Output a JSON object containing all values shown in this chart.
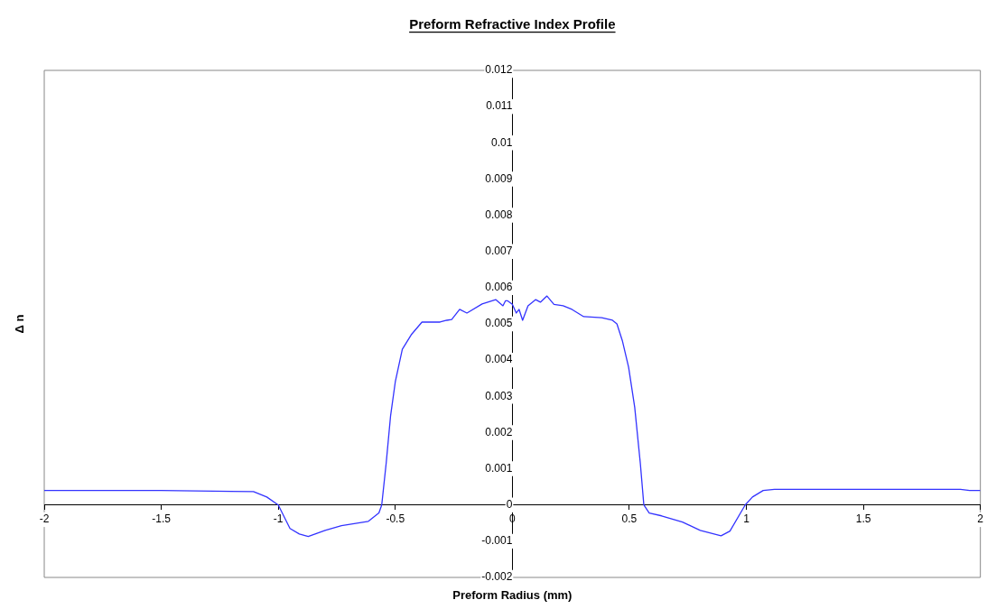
{
  "chart_data": {
    "type": "line",
    "title": "Preform Refractive Index Profile",
    "xlabel": "Preform Radius (mm)",
    "ylabel": "Δ n",
    "xlim": [
      -2,
      2
    ],
    "xticks": [
      -2,
      -1.5,
      -1,
      -0.5,
      0,
      0.5,
      1,
      1.5,
      2
    ],
    "ylim": [
      -0.002,
      0.012
    ],
    "yticks": [
      -0.002,
      -0.001,
      0,
      0.001,
      0.002,
      0.003,
      0.004,
      0.005,
      0.006,
      0.007,
      0.008,
      0.009,
      0.01,
      0.011,
      0.012
    ],
    "grid": false,
    "legend": false,
    "marker": "none",
    "line_style": "solid",
    "series": [
      {
        "color": "#3333ff",
        "x": [
          -2,
          -1.5,
          -1.106,
          -1.049,
          -1,
          -0.95,
          -0.91,
          -0.872,
          -0.8,
          -0.73,
          -0.615,
          -0.57,
          -0.558,
          -0.539,
          -0.52,
          -0.5,
          -0.47,
          -0.432,
          -0.386,
          -0.309,
          -0.28,
          -0.259,
          -0.225,
          -0.194,
          -0.129,
          -0.071,
          -0.04,
          -0.029,
          -0.021,
          0,
          0.017,
          0.029,
          0.044,
          0.067,
          0.1,
          0.12,
          0.148,
          0.178,
          0.217,
          0.255,
          0.305,
          0.382,
          0.428,
          0.447,
          0.47,
          0.497,
          0.523,
          0.547,
          0.562,
          0.585,
          0.638,
          0.727,
          0.803,
          0.892,
          0.93,
          0.995,
          1.026,
          1.072,
          1.12,
          1.5,
          1.915,
          1.954,
          2
        ],
        "values": [
          0.0004,
          0.0004,
          0.00037,
          0.00022,
          0,
          -0.00065,
          -0.0008,
          -0.00087,
          -0.0007,
          -0.00057,
          -0.00045,
          -0.00022,
          0,
          0.00115,
          0.00247,
          0.0034,
          0.0043,
          0.0047,
          0.00505,
          0.00505,
          0.0051,
          0.00512,
          0.0054,
          0.0053,
          0.00555,
          0.00567,
          0.0055,
          0.00564,
          0.00564,
          0.00554,
          0.0053,
          0.0054,
          0.0051,
          0.0055,
          0.00567,
          0.0056,
          0.00577,
          0.00554,
          0.0055,
          0.0054,
          0.0052,
          0.00517,
          0.0051,
          0.005,
          0.00454,
          0.0038,
          0.0027,
          0.00115,
          0,
          -0.00022,
          -0.0003,
          -0.00047,
          -0.0007,
          -0.00085,
          -0.00072,
          0,
          0.00022,
          0.0004,
          0.00043,
          0.00043,
          0.00043,
          0.0004,
          0.0004
        ]
      }
    ]
  }
}
